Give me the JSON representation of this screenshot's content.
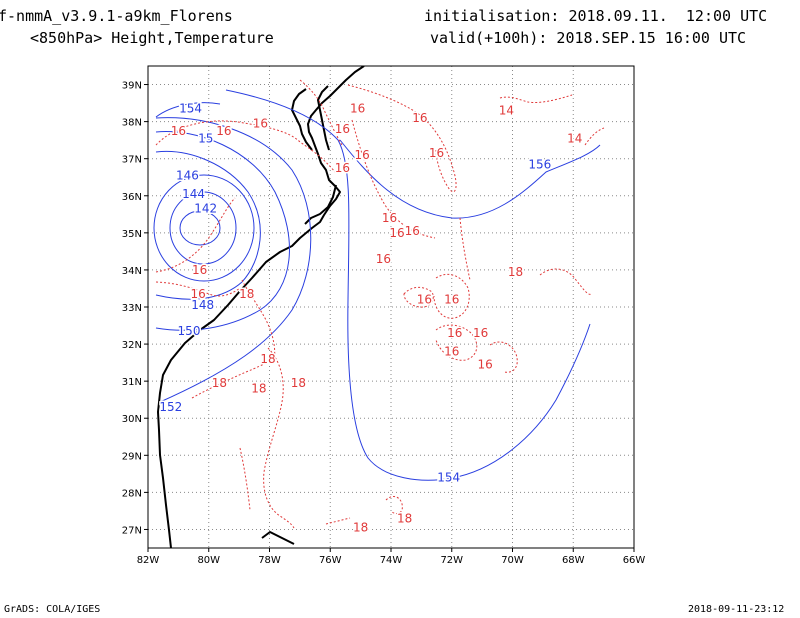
{
  "header": {
    "model": "f-nmmA_v3.9.1-a9km_Florens",
    "level": "<850hPa> Height,Temperature",
    "init": "initialisation: 2018.09.11.  12:00 UTC",
    "valid": "valid(+100h): 2018.SEP.15 16:00 UTC"
  },
  "footer": {
    "left": "GrADS: COLA/IGES",
    "right": "2018-09-11-23:12"
  },
  "colors": {
    "height": "#2a3fe0",
    "temperature": "#e03a3a",
    "coast": "#000000",
    "grid": "#8a8a8a"
  },
  "axes": {
    "lon_ticks": [
      "82W",
      "80W",
      "78W",
      "76W",
      "74W",
      "72W",
      "70W",
      "68W",
      "66W"
    ],
    "lat_ticks": [
      "39N",
      "38N",
      "37N",
      "36N",
      "35N",
      "34N",
      "33N",
      "32N",
      "31N",
      "30N",
      "29N",
      "28N",
      "27N"
    ]
  },
  "height_labels": [
    {
      "text": "154",
      "lon": -80.6,
      "lat": 38.35
    },
    {
      "text": "15",
      "lon": -80.1,
      "lat": 37.55
    },
    {
      "text": "146",
      "lon": -80.7,
      "lat": 36.55
    },
    {
      "text": "144",
      "lon": -80.5,
      "lat": 36.05
    },
    {
      "text": "142",
      "lon": -80.1,
      "lat": 35.65
    },
    {
      "text": "148",
      "lon": -80.2,
      "lat": 33.05
    },
    {
      "text": "150",
      "lon": -80.65,
      "lat": 32.35
    },
    {
      "text": "152",
      "lon": -81.25,
      "lat": 30.3
    },
    {
      "text": "156",
      "lon": -69.1,
      "lat": 36.85
    },
    {
      "text": "154",
      "lon": -72.1,
      "lat": 28.4
    }
  ],
  "temp_labels": [
    {
      "text": "16",
      "lon": -75.1,
      "lat": 38.35
    },
    {
      "text": "16",
      "lon": -73.05,
      "lat": 38.1
    },
    {
      "text": "14",
      "lon": -70.2,
      "lat": 38.3
    },
    {
      "text": "14",
      "lon": -67.95,
      "lat": 37.55
    },
    {
      "text": "16",
      "lon": -81.0,
      "lat": 37.75
    },
    {
      "text": "16",
      "lon": -79.5,
      "lat": 37.75
    },
    {
      "text": "16",
      "lon": -78.3,
      "lat": 37.95
    },
    {
      "text": "16",
      "lon": -75.6,
      "lat": 37.8
    },
    {
      "text": "16",
      "lon": -74.95,
      "lat": 37.1
    },
    {
      "text": "16",
      "lon": -75.6,
      "lat": 36.75
    },
    {
      "text": "16",
      "lon": -72.5,
      "lat": 37.15
    },
    {
      "text": "16",
      "lon": -74.05,
      "lat": 35.4
    },
    {
      "text": "16",
      "lon": -73.8,
      "lat": 35.0
    },
    {
      "text": "16",
      "lon": -73.3,
      "lat": 35.05
    },
    {
      "text": "16",
      "lon": -74.25,
      "lat": 34.3
    },
    {
      "text": "16",
      "lon": -80.3,
      "lat": 34.0
    },
    {
      "text": "16",
      "lon": -80.35,
      "lat": 33.35
    },
    {
      "text": "16",
      "lon": -72.9,
      "lat": 33.2
    },
    {
      "text": "16",
      "lon": -72.0,
      "lat": 33.2
    },
    {
      "text": "16",
      "lon": -71.9,
      "lat": 32.3
    },
    {
      "text": "16",
      "lon": -71.05,
      "lat": 32.3
    },
    {
      "text": "16",
      "lon": -72.0,
      "lat": 31.8
    },
    {
      "text": "16",
      "lon": -70.9,
      "lat": 31.45
    },
    {
      "text": "18",
      "lon": -78.75,
      "lat": 33.35
    },
    {
      "text": "18",
      "lon": -69.9,
      "lat": 33.95
    },
    {
      "text": "18",
      "lon": -78.05,
      "lat": 31.6
    },
    {
      "text": "18",
      "lon": -79.65,
      "lat": 30.95
    },
    {
      "text": "18",
      "lon": -78.35,
      "lat": 30.8
    },
    {
      "text": "18",
      "lon": -77.05,
      "lat": 30.95
    },
    {
      "text": "18",
      "lon": -75.0,
      "lat": 27.05
    },
    {
      "text": "18",
      "lon": -73.55,
      "lat": 27.3
    }
  ]
}
